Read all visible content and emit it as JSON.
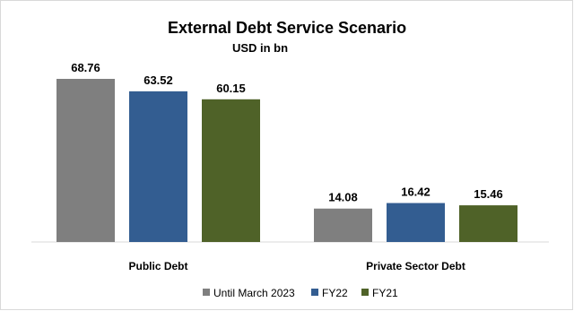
{
  "chart_data": {
    "type": "bar",
    "title": "External Debt Service Scenario",
    "subtitle": "USD in bn",
    "categories": [
      "Public Debt",
      "Private Sector Debt"
    ],
    "series": [
      {
        "name": "Until March 2023",
        "color": "#7f7f7f",
        "values": [
          68.76,
          14.08
        ]
      },
      {
        "name": "FY22",
        "color": "#335d91",
        "values": [
          63.52,
          16.42
        ]
      },
      {
        "name": "FY21",
        "color": "#4f6228",
        "values": [
          60.15,
          15.46
        ]
      }
    ],
    "value_labels": [
      [
        "68.76",
        "14.08"
      ],
      [
        "63.52",
        "16.42"
      ],
      [
        "60.15",
        "15.46"
      ]
    ],
    "ylim": [
      0,
      75
    ],
    "grid": false,
    "legend": "bottom"
  }
}
